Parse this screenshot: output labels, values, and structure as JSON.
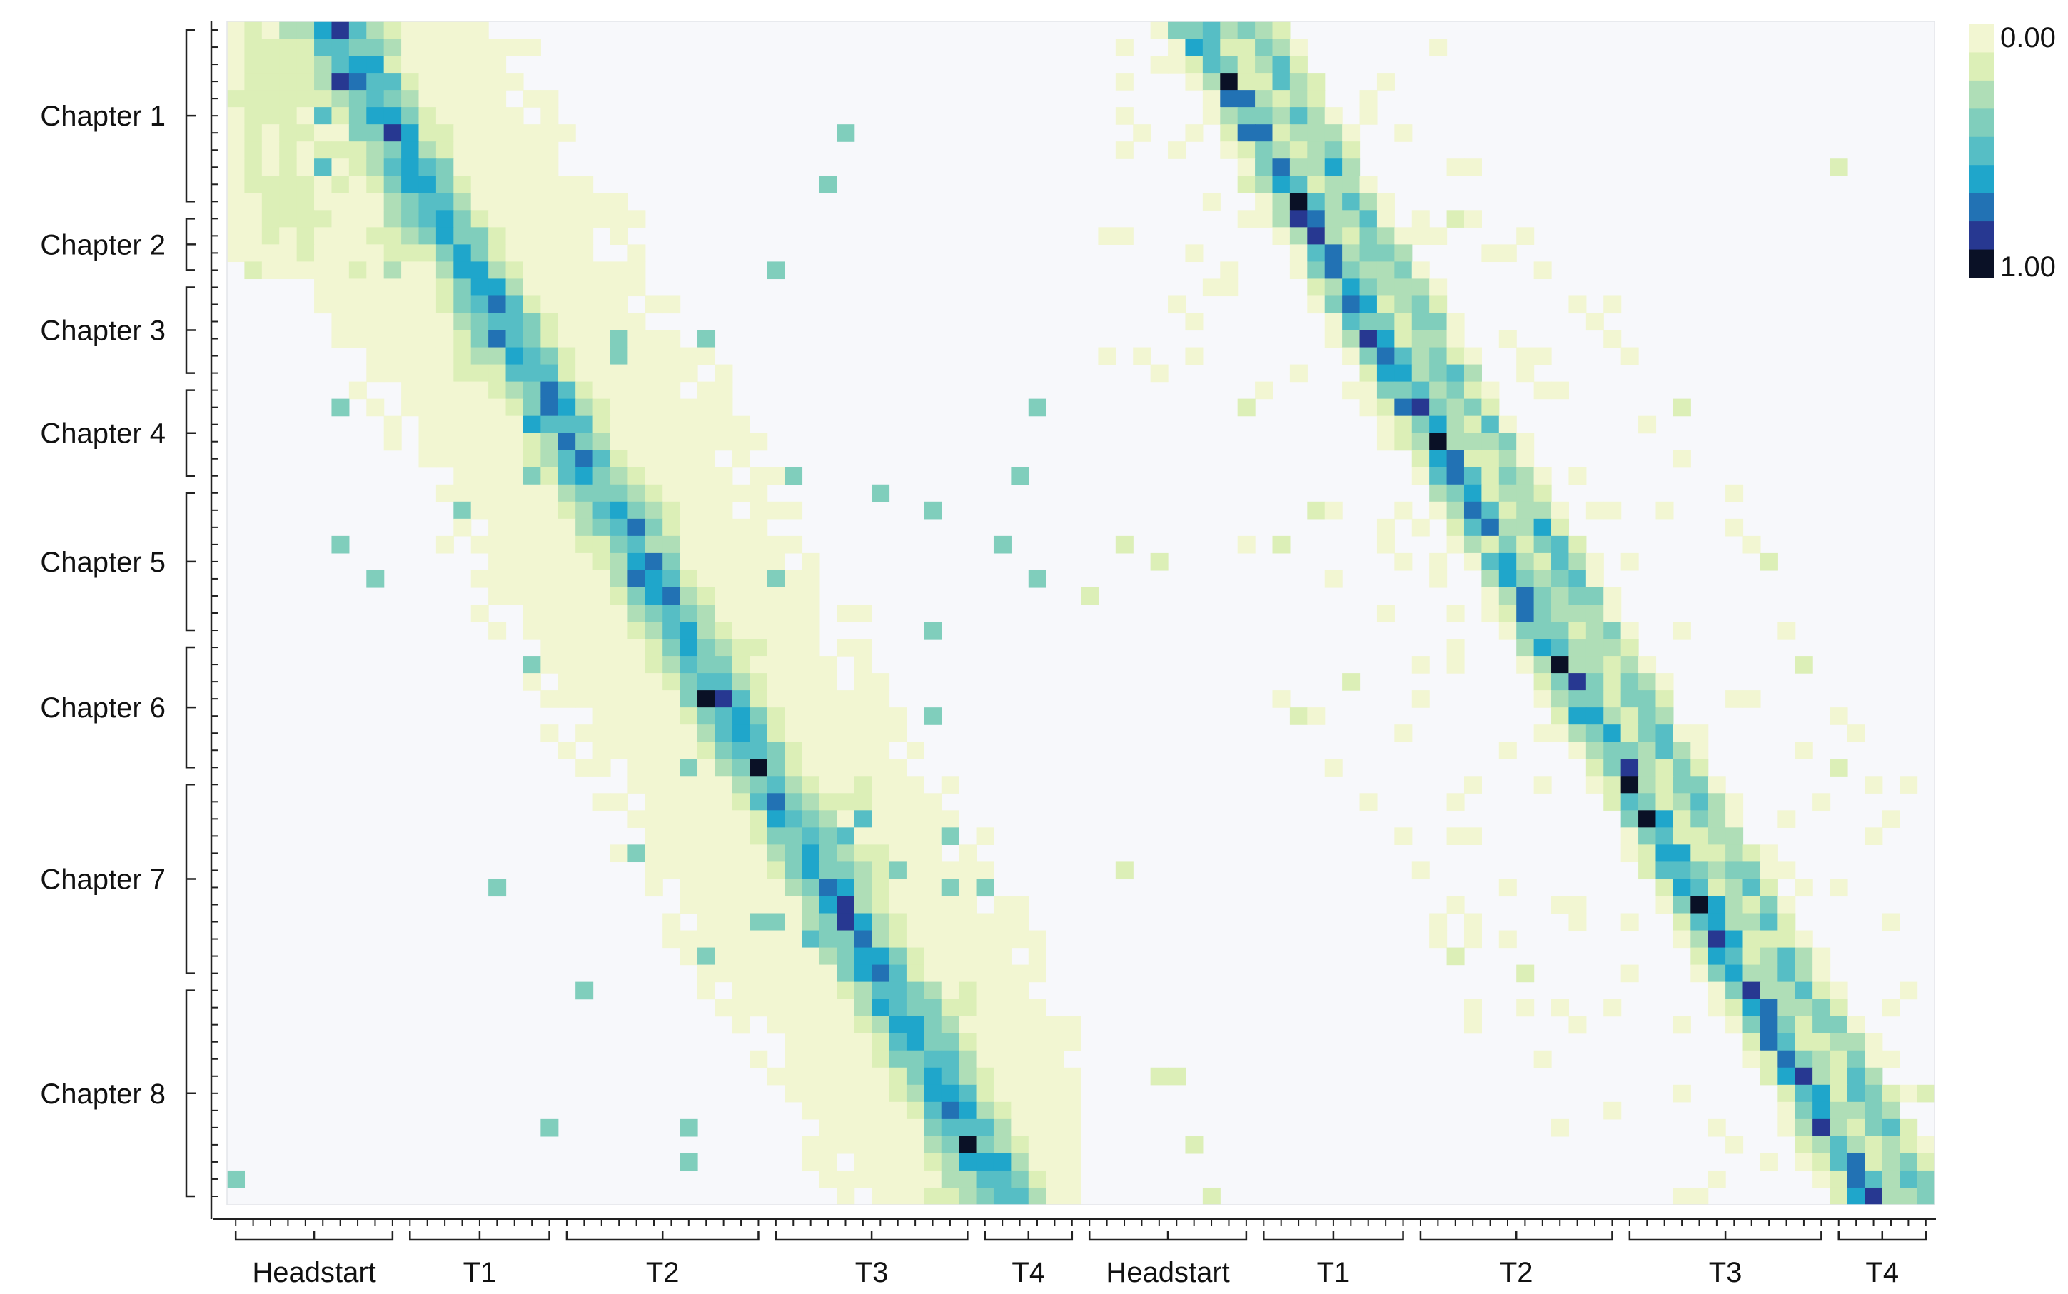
{
  "chart_data": {
    "type": "heatmap",
    "title": "",
    "xlabel": "",
    "ylabel": "",
    "rows": {
      "groups": [
        "Chapter 1",
        "Chapter 2",
        "Chapter 3",
        "Chapter 4",
        "Chapter 5",
        "Chapter 6",
        "Chapter 7",
        "Chapter 8"
      ],
      "sizes": [
        11,
        4,
        6,
        6,
        9,
        8,
        12,
        13
      ],
      "total": 69
    },
    "columns": {
      "groups": [
        "Headstart",
        "T1",
        "T2",
        "T3",
        "T4",
        "Headstart",
        "T1",
        "T2",
        "T3",
        "T4"
      ],
      "sizes": [
        10,
        9,
        12,
        12,
        6,
        10,
        9,
        12,
        12,
        6
      ],
      "total": 98,
      "panels": 2
    },
    "colorbar": {
      "min_label": "0.00",
      "max_label": "1.00",
      "range": [
        0,
        1
      ],
      "levels": 9,
      "colors": [
        "#f2f6d2",
        "#dcefb7",
        "#afdeb7",
        "#80cebc",
        "#56bec5",
        "#1fa6cb",
        "#2272b4",
        "#273891",
        "#0a1126"
      ]
    },
    "background_color": "#f7f8fb",
    "structure": {
      "left_panel": "broad diagonal band: each chapter's rows peak in the matching column span",
      "right_panel": "sparse, sharper diagonal band with near-zero cells left blank",
      "peak_value": 1.0
    }
  }
}
